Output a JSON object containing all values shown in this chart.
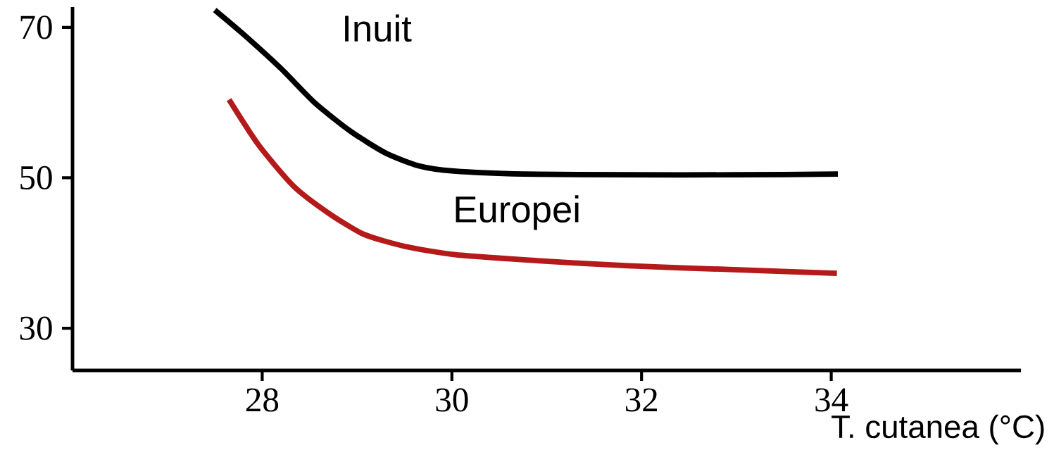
{
  "chart_data": {
    "type": "line",
    "xlabel": "T. cutanea (°C)",
    "xlim": [
      26,
      36
    ],
    "xticks": [
      28,
      30,
      32,
      34
    ],
    "ylim": [
      24.4,
      72.7
    ],
    "yticks": [
      30,
      50,
      70
    ],
    "grid": false,
    "marker": "none",
    "line_style": "solid",
    "series": [
      {
        "name": "Inuit",
        "color": "#000000",
        "x": [
          27.5,
          27.8,
          28.2,
          28.56,
          28.93,
          29.3,
          29.65,
          30.02,
          30.76,
          31.86,
          33.0,
          34.07
        ],
        "values": [
          72.3,
          69.1,
          64.5,
          59.9,
          56.2,
          53.3,
          51.6,
          50.9,
          50.5,
          50.4,
          50.4,
          50.5
        ]
      },
      {
        "name": "Europei",
        "color": "#b51a1a",
        "x": [
          27.65,
          27.96,
          28.33,
          28.7,
          29.07,
          29.5,
          30.02,
          30.76,
          31.86,
          32.97,
          34.06
        ],
        "values": [
          60.4,
          54.4,
          48.9,
          45.3,
          42.5,
          40.9,
          39.8,
          39.1,
          38.3,
          37.8,
          37.3
        ]
      }
    ]
  }
}
